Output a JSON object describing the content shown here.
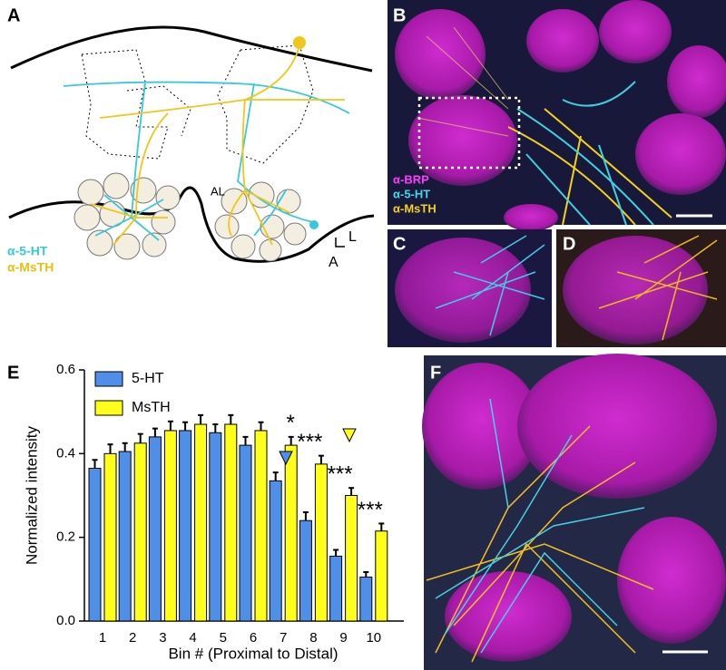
{
  "panels": {
    "a": {
      "label": "A",
      "region_label": "AL",
      "stain_1": "α-5-HT",
      "stain_2": "α-MsTH",
      "axis_lateral": "L",
      "axis_anterior": "A"
    },
    "b": {
      "label": "B",
      "stains": [
        "α-BRP",
        "α-5-HT",
        "α-MsTH"
      ]
    },
    "c": {
      "label": "C"
    },
    "d": {
      "label": "D"
    },
    "e": {
      "label": "E"
    },
    "f": {
      "label": "F"
    }
  },
  "chart_data": {
    "type": "bar",
    "y_label": "Normalized intensity",
    "x_label": "Bin # (Proximal to Distal)",
    "categories": [
      "1",
      "2",
      "3",
      "4",
      "5",
      "6",
      "7",
      "8",
      "9",
      "10"
    ],
    "series": [
      {
        "name": "5-HT",
        "color": "#4f8fe8",
        "values": [
          0.365,
          0.405,
          0.44,
          0.455,
          0.45,
          0.42,
          0.335,
          0.24,
          0.155,
          0.105
        ],
        "errors": [
          0.02,
          0.02,
          0.02,
          0.02,
          0.02,
          0.02,
          0.02,
          0.02,
          0.015,
          0.012
        ]
      },
      {
        "name": "MsTH",
        "color": "#ffff1a",
        "values": [
          0.4,
          0.425,
          0.455,
          0.47,
          0.47,
          0.455,
          0.42,
          0.375,
          0.3,
          0.215
        ],
        "errors": [
          0.022,
          0.022,
          0.022,
          0.022,
          0.022,
          0.02,
          0.02,
          0.02,
          0.018,
          0.018
        ]
      }
    ],
    "annotations": [
      {
        "text": "*",
        "category": "7"
      },
      {
        "text": "***",
        "category": "8"
      },
      {
        "text": "***",
        "category": "9"
      },
      {
        "text": "***",
        "category": "10"
      }
    ],
    "ylim": [
      0,
      0.6
    ],
    "yticks": [
      {
        "value": 0,
        "label": "0.0"
      },
      0.2,
      0.4,
      0.6
    ]
  }
}
